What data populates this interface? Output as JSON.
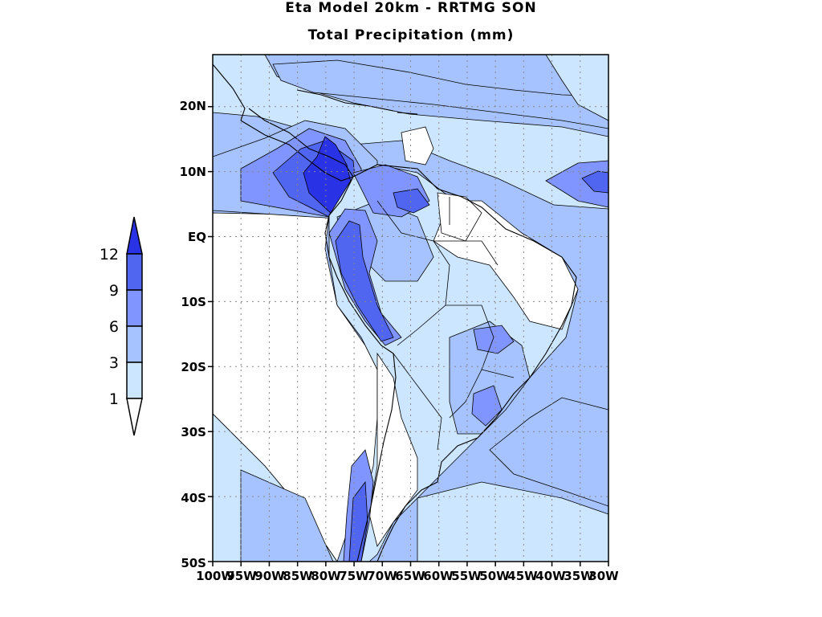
{
  "title": "Eta Model 20km - RRTMG SON",
  "subtitle": "Total Precipitation (mm)",
  "colors": {
    "c0": "#ffffff",
    "c1": "#cce6ff",
    "c2": "#a6c3ff",
    "c3": "#8095ff",
    "c4": "#5065f0",
    "c5": "#2a32e6"
  },
  "legend": {
    "levels": [
      "1",
      "3",
      "6",
      "9",
      "12"
    ]
  },
  "axes": {
    "lat_labels": [
      "20N",
      "10N",
      "EQ",
      "10S",
      "20S",
      "30S",
      "40S",
      "50S"
    ],
    "lon_labels": [
      "100W",
      "95W",
      "90W",
      "85W",
      "80W",
      "75W",
      "70W",
      "65W",
      "60W",
      "55W",
      "50W",
      "45W",
      "40W",
      "35W",
      "30W"
    ]
  },
  "map_data": {
    "lon_range": [
      -100,
      -30
    ],
    "lat_range": [
      -50,
      28
    ],
    "grid_lat": [
      20,
      10,
      0,
      -10,
      -20,
      -30,
      -40,
      -50
    ],
    "grid_lon": [
      -100,
      -95,
      -90,
      -85,
      -80,
      -75,
      -70,
      -65,
      -60,
      -55,
      -50,
      -45,
      -40,
      -35,
      -30
    ],
    "grid": "dotted"
  }
}
